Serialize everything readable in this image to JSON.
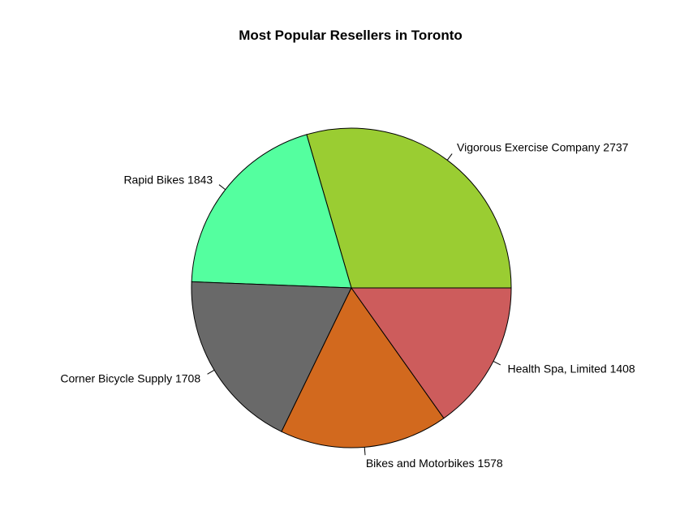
{
  "chart_data": {
    "type": "pie",
    "title": "Most Popular Resellers in Toronto",
    "direction": "counterclockwise",
    "start": "3 o'clock",
    "slices": [
      {
        "label": "Vigorous Exercise Company 2737",
        "name": "Vigorous Exercise Company",
        "value": 2737,
        "color": "#9ACD32"
      },
      {
        "label": "Rapid Bikes 1843",
        "name": "Rapid Bikes",
        "value": 1843,
        "color": "#54FF9F"
      },
      {
        "label": "Corner Bicycle Supply 1708",
        "name": "Corner Bicycle Supply",
        "value": 1708,
        "color": "#696969"
      },
      {
        "label": "Bikes and Motorbikes 1578",
        "name": "Bikes and Motorbikes",
        "value": 1578,
        "color": "#D2691E"
      },
      {
        "label": "Health Spa, Limited 1408",
        "name": "Health Spa, Limited",
        "value": 1408,
        "color": "#CD5C5C"
      }
    ]
  }
}
